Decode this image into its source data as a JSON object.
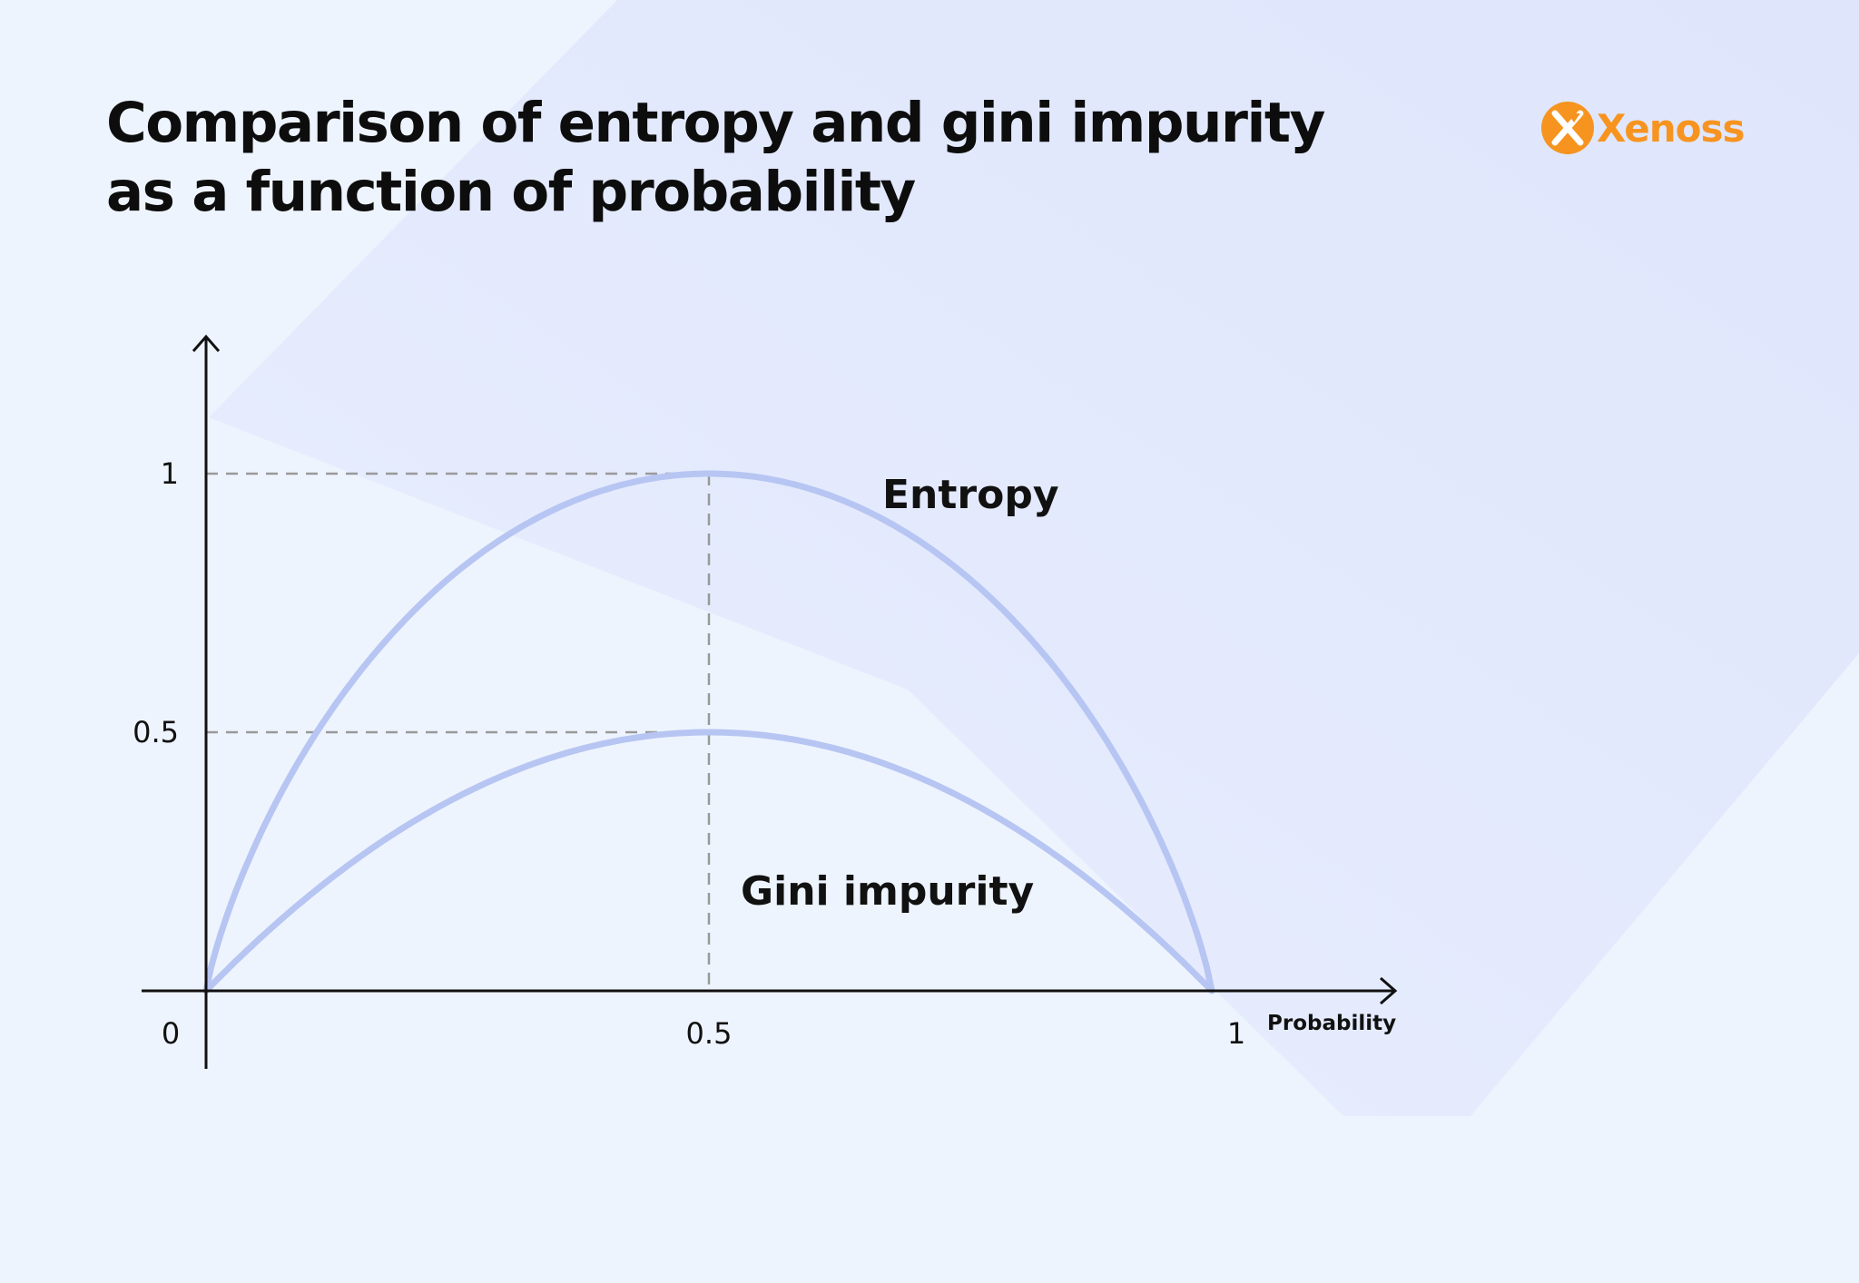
{
  "header": {
    "title_line1": "Comparison of entropy and gini impurity",
    "title_line2": "as a function of probability"
  },
  "brand": {
    "name": "Xenoss",
    "icon": "xenoss-logo-icon",
    "color": "#f79420"
  },
  "colors": {
    "background": "#eef4fe",
    "curve": "#b7c5f3",
    "axis": "#111111",
    "guide": "#999999"
  },
  "chart_data": {
    "type": "line",
    "title": "Comparison of entropy and gini impurity as a function of probability",
    "xlabel": "Probability",
    "ylabel": "",
    "xlim": [
      0,
      1
    ],
    "ylim": [
      0,
      1
    ],
    "x_ticks": [
      "0",
      "0.5",
      "1"
    ],
    "y_ticks": [
      "1",
      "0.5"
    ],
    "grid": false,
    "guides": [
      {
        "axis": "y",
        "value": 1,
        "to_x": 0.5
      },
      {
        "axis": "y",
        "value": 0.5,
        "to_x": 0.5
      },
      {
        "axis": "x",
        "value": 0.5
      }
    ],
    "x": [
      0,
      0.05,
      0.1,
      0.15,
      0.2,
      0.25,
      0.3,
      0.35,
      0.4,
      0.45,
      0.5,
      0.55,
      0.6,
      0.65,
      0.7,
      0.75,
      0.8,
      0.85,
      0.9,
      0.95,
      1
    ],
    "series": [
      {
        "name": "Entropy",
        "values": [
          0,
          0.19,
          0.36,
          0.51,
          0.64,
          0.75,
          0.84,
          0.91,
          0.96,
          0.99,
          1,
          0.99,
          0.96,
          0.91,
          0.84,
          0.75,
          0.64,
          0.51,
          0.36,
          0.19,
          0
        ]
      },
      {
        "name": "Gini impurity",
        "values": [
          0,
          0.095,
          0.18,
          0.255,
          0.32,
          0.375,
          0.42,
          0.455,
          0.48,
          0.495,
          0.5,
          0.495,
          0.48,
          0.455,
          0.42,
          0.375,
          0.32,
          0.255,
          0.18,
          0.095,
          0
        ]
      }
    ]
  }
}
